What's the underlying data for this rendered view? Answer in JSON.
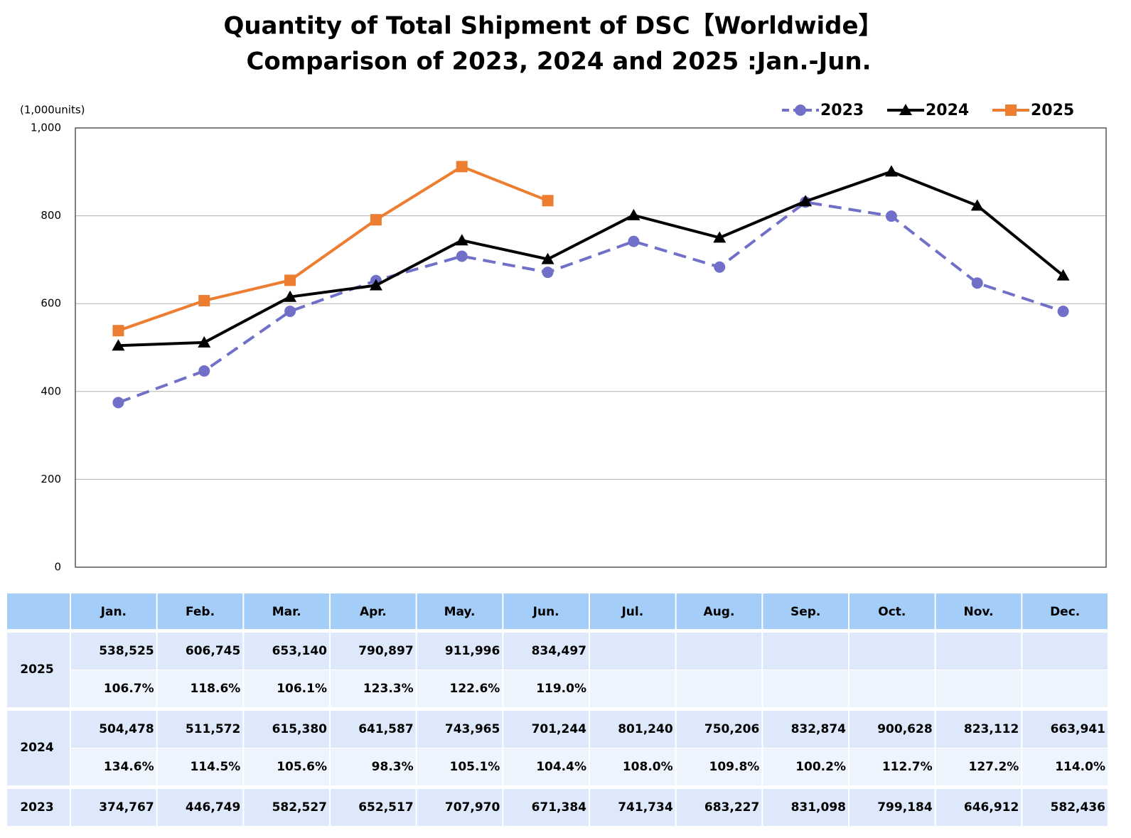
{
  "chart_data": {
    "type": "line",
    "title": "Quantity of Total Shipment of DSC【Worldwide】",
    "subtitle": "Comparison of 2023, 2024 and 2025 :Jan.-Jun.",
    "ylabel": "(1,000units)",
    "categories": [
      null,
      null,
      null,
      null,
      null,
      null,
      null,
      null,
      null,
      null,
      null,
      null
    ],
    "ylim": [
      0,
      1000
    ],
    "yticks": [
      0,
      200,
      400,
      600,
      800,
      {
        "value": 1000,
        "label": "1,000"
      }
    ],
    "grid": true,
    "legend": "top-right",
    "series": [
      {
        "name": "2023",
        "color": "#7070c8",
        "dash": true,
        "marker": "circle",
        "values": [
          374.767,
          446.749,
          582.527,
          652.517,
          707.97,
          671.384,
          741.734,
          683.227,
          831.098,
          799.184,
          646.912,
          582.436
        ]
      },
      {
        "name": "2024",
        "color": "#000000",
        "dash": false,
        "marker": "triangle",
        "values": [
          504.478,
          511.572,
          615.38,
          641.587,
          743.965,
          701.244,
          801.24,
          750.206,
          832.874,
          900.628,
          823.112,
          663.941
        ]
      },
      {
        "name": "2025",
        "color": "#ed7d31",
        "dash": false,
        "marker": "square",
        "values": [
          538.525,
          606.745,
          653.14,
          790.897,
          911.996,
          834.497,
          null,
          null,
          null,
          null,
          null,
          null
        ]
      }
    ]
  },
  "table": {
    "columns": [
      "Jan.",
      "Feb.",
      "Mar.",
      "Apr.",
      "May.",
      "Jun.",
      "Jul.",
      "Aug.",
      "Sep.",
      "Oct.",
      "Nov.",
      "Dec."
    ],
    "rows": [
      {
        "label": "2025",
        "lines": [
          [
            "538,525",
            "606,745",
            "653,140",
            "790,897",
            "911,996",
            "834,497",
            null,
            null,
            null,
            null,
            null,
            null
          ],
          [
            "106.7%",
            "118.6%",
            "106.1%",
            "123.3%",
            "122.6%",
            "119.0%",
            null,
            null,
            null,
            null,
            null,
            null
          ]
        ]
      },
      {
        "label": "2024",
        "lines": [
          [
            "504,478",
            "511,572",
            "615,380",
            "641,587",
            "743,965",
            "701,244",
            "801,240",
            "750,206",
            "832,874",
            "900,628",
            "823,112",
            "663,941"
          ],
          [
            "134.6%",
            "114.5%",
            "105.6%",
            "98.3%",
            "105.1%",
            "104.4%",
            "108.0%",
            "109.8%",
            "100.2%",
            "112.7%",
            "127.2%",
            "114.0%"
          ]
        ]
      },
      {
        "label": "2023",
        "lines": [
          [
            "374,767",
            "446,749",
            "582,527",
            "652,517",
            "707,970",
            "671,384",
            "741,734",
            "683,227",
            "831,098",
            "799,184",
            "646,912",
            "582,436"
          ]
        ]
      }
    ]
  }
}
